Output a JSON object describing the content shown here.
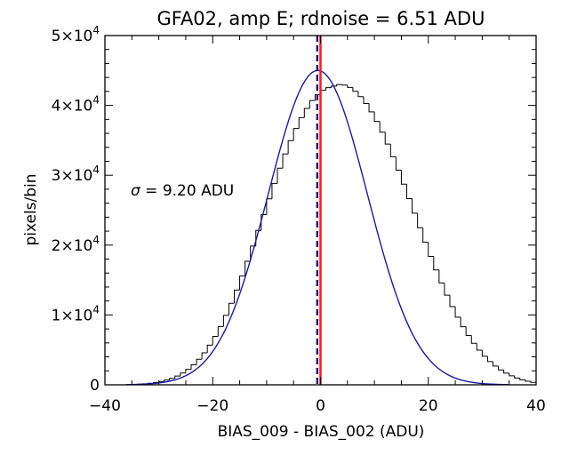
{
  "chart_data": {
    "type": "histogram",
    "title": "GFA02, amp E; rdnoise = 6.51 ADU",
    "xlabel": "BIAS_009 - BIAS_002 (ADU)",
    "ylabel": "pixels/bin",
    "xlim": [
      -40,
      40
    ],
    "ylim": [
      0,
      50000
    ],
    "x_ticks": [
      -40,
      -20,
      0,
      20,
      40
    ],
    "x_tick_labels": [
      "−40",
      "−20",
      "0",
      "20",
      "40"
    ],
    "y_ticks": [
      0,
      10000,
      20000,
      30000,
      40000,
      50000
    ],
    "y_tick_labels": [
      {
        "mantissa": "0",
        "exponent": ""
      },
      {
        "mantissa": "1×10",
        "exponent": "4"
      },
      {
        "mantissa": "2×10",
        "exponent": "4"
      },
      {
        "mantissa": "3×10",
        "exponent": "4"
      },
      {
        "mantissa": "4×10",
        "exponent": "4"
      },
      {
        "mantissa": "5×10",
        "exponent": "4"
      }
    ],
    "annotation": {
      "symbol": "σ",
      "text": " = 9.20 ADU"
    },
    "grid": false,
    "histogram": {
      "bin_width": 1,
      "bin_start": -36,
      "counts": [
        40,
        70,
        100,
        150,
        230,
        330,
        480,
        680,
        930,
        1260,
        1680,
        2210,
        2860,
        3650,
        4580,
        5670,
        6930,
        8350,
        9940,
        11680,
        13570,
        15570,
        17680,
        19870,
        22100,
        24360,
        26630,
        28840,
        31010,
        33040,
        34950,
        36690,
        38240,
        39560,
        40690,
        41540,
        42160,
        42540,
        42760,
        42980,
        42900,
        42570,
        42020,
        41260,
        40270,
        39080,
        37710,
        36160,
        34470,
        32650,
        30730,
        28720,
        26660,
        24570,
        22480,
        20410,
        18390,
        16440,
        14580,
        12830,
        11190,
        9690,
        8310,
        7060,
        5950,
        4960,
        4090,
        3330,
        2680,
        2130,
        1670,
        1290,
        970,
        720,
        510,
        350
      ],
      "color": "#000000"
    },
    "gaussian_fit": {
      "amplitude": 45000,
      "mean": -0.5,
      "sigma": 9.2,
      "color": "#1a1aa6"
    },
    "vertical_lines": [
      {
        "x": 0,
        "color": "#ff1a1a",
        "style": "solid"
      },
      {
        "x": -0.6,
        "color": "#0d0d70",
        "style": "dashed"
      }
    ]
  }
}
